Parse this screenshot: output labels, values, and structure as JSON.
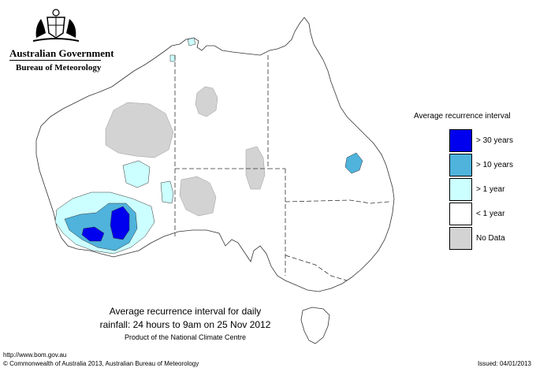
{
  "header": {
    "government": "Australian Government",
    "agency": "Bureau of Meteorology",
    "crest_icon": "commonwealth-coat-of-arms-icon"
  },
  "legend": {
    "title": "Average recurrence interval",
    "items": [
      {
        "label": "> 30 years",
        "color": "#0000ee"
      },
      {
        "label": "> 10 years",
        "color": "#4fb3dc"
      },
      {
        "label": "> 1 year",
        "color": "#ccffff"
      },
      {
        "label": "< 1 year",
        "color": "#ffffff"
      },
      {
        "label": "No Data",
        "color": "#d3d3d3"
      }
    ]
  },
  "caption": {
    "line1": "Average recurrence interval for daily",
    "line2": "rainfall: 24 hours to 9am on 25 Nov 2012",
    "line3": "Product of the National Climate Centre"
  },
  "footer": {
    "url": "http://www.bom.gov.au",
    "copyright": "© Commonwealth of Australia 2013, Australian Bureau of Meteorology",
    "issued": "Issued: 04/01/2013"
  }
}
